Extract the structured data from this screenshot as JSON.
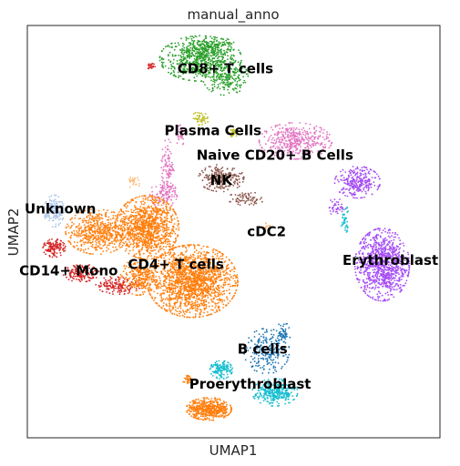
{
  "chart_data": {
    "type": "scatter",
    "title": "manual_anno",
    "xlabel": "UMAP1",
    "ylabel": "UMAP2",
    "xlim": [
      0,
      100
    ],
    "ylim": [
      0,
      100
    ],
    "grid": false,
    "legend": "on data",
    "series": [
      {
        "name": "CD8+ T cells",
        "color": "#2ca02c",
        "label": {
          "x": 48,
          "y": 89.5
        },
        "clusters": [
          {
            "cx": 42,
            "cy": 92,
            "rx": 9,
            "ry": 5,
            "n": 650
          },
          {
            "cx": 48,
            "cy": 87.5,
            "rx": 5,
            "ry": 4,
            "n": 220
          },
          {
            "cx": 45,
            "cy": 95,
            "rx": 5,
            "ry": 2,
            "n": 120
          }
        ]
      },
      {
        "name": "Plasma Cells",
        "color": "#bcbd22",
        "label": {
          "x": 45,
          "y": 74.5
        },
        "clusters": [
          {
            "cx": 42,
            "cy": 77.5,
            "rx": 2,
            "ry": 1.5,
            "n": 45
          },
          {
            "cx": 50,
            "cy": 74,
            "rx": 1.2,
            "ry": 1,
            "n": 25
          }
        ]
      },
      {
        "name": "Naive CD20+ B Cells",
        "color": "#e377c2",
        "label": {
          "x": 60,
          "y": 68.5
        },
        "clusters": [
          {
            "cx": 65,
            "cy": 72,
            "rx": 8,
            "ry": 4,
            "n": 420
          },
          {
            "cx": 33,
            "cy": 59,
            "rx": 3,
            "ry": 3,
            "n": 120
          },
          {
            "cx": 34,
            "cy": 66,
            "rx": 1.4,
            "ry": 6,
            "n": 90
          },
          {
            "cx": 37,
            "cy": 74,
            "rx": 1.2,
            "ry": 3,
            "n": 40
          }
        ]
      },
      {
        "name": "NK",
        "color": "#8c564b",
        "label": {
          "x": 47,
          "y": 62.5
        },
        "clusters": [
          {
            "cx": 47,
            "cy": 63,
            "rx": 5,
            "ry": 3,
            "n": 240
          },
          {
            "cx": 53,
            "cy": 58,
            "rx": 4,
            "ry": 1.5,
            "n": 70
          }
        ]
      },
      {
        "name": "Erythroblast",
        "color": "#a54cf5",
        "label": {
          "x": 88,
          "y": 43
        },
        "clusters": [
          {
            "cx": 86,
            "cy": 42,
            "rx": 6,
            "ry": 8,
            "n": 950
          },
          {
            "cx": 80,
            "cy": 62,
            "rx": 5,
            "ry": 3.5,
            "n": 280
          },
          {
            "cx": 75,
            "cy": 56,
            "rx": 2,
            "ry": 2,
            "n": 40
          }
        ]
      },
      {
        "name": "Unknown",
        "color": "#aec7e8",
        "label": {
          "x": 8,
          "y": 55.5
        },
        "clusters": [
          {
            "cx": 6.5,
            "cy": 55,
            "rx": 2.2,
            "ry": 3.5,
            "n": 170
          }
        ]
      },
      {
        "name": "CD14+ Mono",
        "color": "#d62728",
        "label": {
          "x": 10,
          "y": 40.5
        },
        "clusters": [
          {
            "cx": 6.5,
            "cy": 46,
            "rx": 2.5,
            "ry": 2,
            "n": 130
          },
          {
            "cx": 13,
            "cy": 40,
            "rx": 4,
            "ry": 2,
            "n": 140
          },
          {
            "cx": 22,
            "cy": 37,
            "rx": 5,
            "ry": 2,
            "n": 150
          },
          {
            "cx": 30,
            "cy": 90,
            "rx": 0.9,
            "ry": 0.8,
            "n": 25
          }
        ]
      },
      {
        "name": "CD4+ T cells",
        "color": "#ff7f0e",
        "label": {
          "x": 36,
          "y": 42
        },
        "clusters": [
          {
            "cx": 40,
            "cy": 38,
            "rx": 10,
            "ry": 8,
            "n": 1700
          },
          {
            "cx": 29,
            "cy": 51,
            "rx": 7,
            "ry": 7,
            "n": 1100
          },
          {
            "cx": 17,
            "cy": 50,
            "rx": 7,
            "ry": 5,
            "n": 550
          },
          {
            "cx": 27,
            "cy": 39,
            "rx": 4,
            "ry": 4,
            "n": 260
          },
          {
            "cx": 44,
            "cy": 7,
            "rx": 5,
            "ry": 2.5,
            "n": 500
          },
          {
            "cx": 39,
            "cy": 14,
            "rx": 1.2,
            "ry": 1,
            "n": 30
          }
        ]
      },
      {
        "name": "cDC2",
        "color": "#ffbb78",
        "label": {
          "x": 58,
          "y": 50
        },
        "clusters": [
          {
            "cx": 26,
            "cy": 62,
            "rx": 1.5,
            "ry": 1.5,
            "n": 25
          },
          {
            "cx": 58,
            "cy": 51,
            "rx": 1.2,
            "ry": 1,
            "n": 15
          }
        ]
      },
      {
        "name": "B cells",
        "color": "#1f77b4",
        "label": {
          "x": 57,
          "y": 21.5
        },
        "clusters": [
          {
            "cx": 58,
            "cy": 21,
            "rx": 5,
            "ry": 5,
            "n": 220
          },
          {
            "cx": 62,
            "cy": 25,
            "rx": 1.5,
            "ry": 3,
            "n": 60
          }
        ]
      },
      {
        "name": "Proerythroblast",
        "color": "#17becf",
        "label": {
          "x": 54,
          "y": 13
        },
        "clusters": [
          {
            "cx": 60,
            "cy": 11,
            "rx": 5,
            "ry": 3,
            "n": 320
          },
          {
            "cx": 47,
            "cy": 16.5,
            "rx": 2.5,
            "ry": 2,
            "n": 140
          },
          {
            "cx": 77,
            "cy": 53,
            "rx": 1,
            "ry": 3,
            "n": 40
          }
        ]
      }
    ]
  }
}
